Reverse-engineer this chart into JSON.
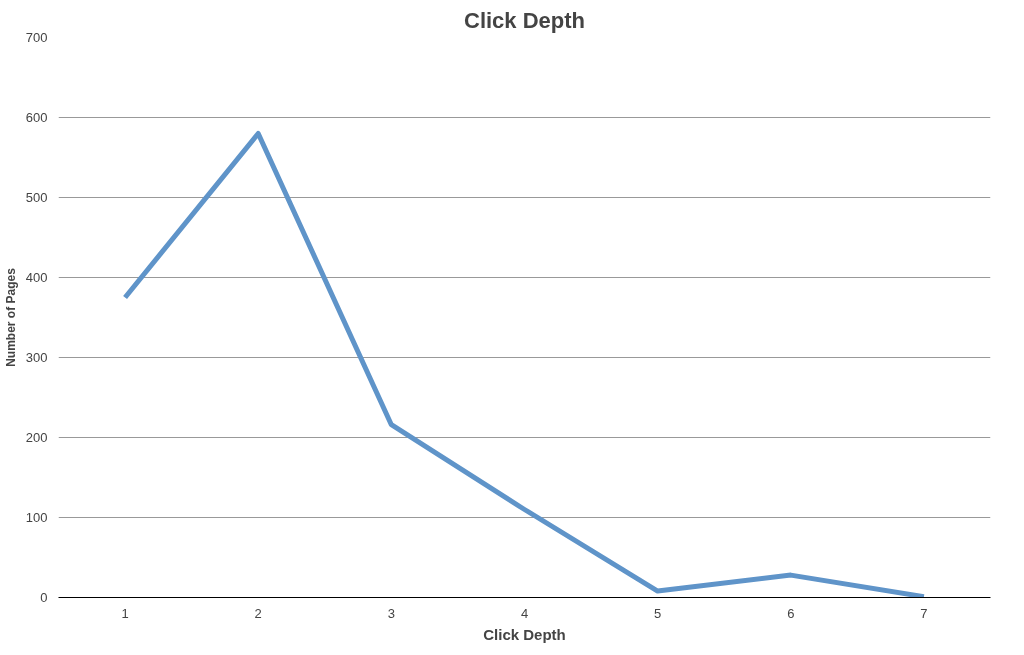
{
  "chart_data": {
    "type": "line",
    "title": "Click Depth",
    "xlabel": "Click Depth",
    "ylabel": "Number of Pages",
    "categories": [
      "1",
      "2",
      "3",
      "4",
      "5",
      "6",
      "7"
    ],
    "series": [
      {
        "color": "#5f94c9",
        "values": [
          375,
          580,
          216,
          110,
          8,
          28,
          1
        ]
      }
    ],
    "ylim": [
      0,
      700
    ],
    "yticks": [
      0,
      100,
      200,
      300,
      400,
      500,
      600,
      700
    ],
    "grid": "y",
    "marker": "none",
    "line_style": "solid"
  }
}
